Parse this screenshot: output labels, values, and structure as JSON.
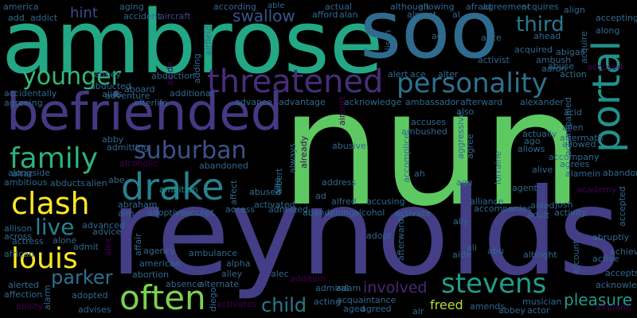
{
  "words": [
    {
      "text": "ambrose",
      "color": "#22a884"
    },
    {
      "text": "soo",
      "color": "#2f6b8e"
    },
    {
      "text": "nun",
      "color": "#5ec962"
    },
    {
      "text": "reynolds",
      "color": "#433e85"
    },
    {
      "text": "befriended",
      "color": "#443983"
    },
    {
      "text": "threatened",
      "color": "#472d7b"
    },
    {
      "text": "personality",
      "color": "#2c728e"
    },
    {
      "text": "drake",
      "color": "#27808e"
    },
    {
      "text": "portal",
      "color": "#21918c"
    },
    {
      "text": "younger",
      "color": "#35b779"
    },
    {
      "text": "family",
      "color": "#2db27d"
    },
    {
      "text": "suburban",
      "color": "#3b528b"
    },
    {
      "text": "clash",
      "color": "#fde725"
    },
    {
      "text": "third",
      "color": "#2a788e"
    },
    {
      "text": "live",
      "color": "#26828e"
    },
    {
      "text": "louis",
      "color": "#fde725"
    },
    {
      "text": "stevens",
      "color": "#1f9e89"
    },
    {
      "text": "often",
      "color": "#7ad151"
    },
    {
      "text": "parker",
      "color": "#2c728e"
    },
    {
      "text": "child",
      "color": "#2a788e"
    },
    {
      "text": "involved",
      "color": "#482878"
    },
    {
      "text": "pleasure",
      "color": "#1f9a8a"
    },
    {
      "text": "freed",
      "color": "#b5de2b"
    },
    {
      "text": "swallow",
      "color": "#39568c"
    },
    {
      "text": "hint",
      "color": "#3e4989"
    },
    {
      "text": "abide",
      "color": "#440154"
    },
    {
      "text": "ambition",
      "color": "#21918c"
    },
    {
      "text": "america",
      "color": "#31688e"
    },
    {
      "text": "addict",
      "color": "#31688e"
    },
    {
      "text": "aging",
      "color": "#31688e"
    },
    {
      "text": "accident",
      "color": "#31688e"
    },
    {
      "text": "aircraft",
      "color": "#3e4989"
    },
    {
      "text": "add",
      "color": "#2c728e"
    },
    {
      "text": "able",
      "color": "#31688e"
    },
    {
      "text": "actual",
      "color": "#31688e"
    },
    {
      "text": "although",
      "color": "#31688e"
    },
    {
      "text": "allowing",
      "color": "#31688e"
    },
    {
      "text": "agreement",
      "color": "#31688e"
    },
    {
      "text": "acquires",
      "color": "#31688e"
    },
    {
      "text": "align",
      "color": "#31688e"
    },
    {
      "text": "accepting",
      "color": "#31688e"
    },
    {
      "text": "afford",
      "color": "#31688e"
    },
    {
      "text": "alan",
      "color": "#31688e"
    },
    {
      "text": "almost",
      "color": "#31688e"
    },
    {
      "text": "al",
      "color": "#31688e"
    },
    {
      "text": "afraid",
      "color": "#31688e"
    },
    {
      "text": "according",
      "color": "#31688e"
    },
    {
      "text": "along",
      "color": "#31688e"
    },
    {
      "text": "abigail",
      "color": "#31688e"
    },
    {
      "text": "acquire",
      "color": "#31688e"
    },
    {
      "text": "alice",
      "color": "#31688e"
    },
    {
      "text": "act",
      "color": "#31688e"
    },
    {
      "text": "alison",
      "color": "#31688e"
    },
    {
      "text": "ahead",
      "color": "#31688e"
    },
    {
      "text": "acquired",
      "color": "#31688e"
    },
    {
      "text": "ambush",
      "color": "#31688e"
    },
    {
      "text": "abuse",
      "color": "#31688e"
    },
    {
      "text": "aaron",
      "color": "#31688e"
    },
    {
      "text": "action",
      "color": "#31688e"
    },
    {
      "text": "accused",
      "color": "#440154"
    },
    {
      "text": "activist",
      "color": "#31688e"
    },
    {
      "text": "alert",
      "color": "#31688e"
    },
    {
      "text": "ace",
      "color": "#31688e"
    },
    {
      "text": "alter",
      "color": "#31688e"
    },
    {
      "text": "airfield",
      "color": "#31688e"
    },
    {
      "text": "adding",
      "color": "#31688e"
    },
    {
      "text": "abbey",
      "color": "#31688e"
    },
    {
      "text": "abducted",
      "color": "#31688e"
    },
    {
      "text": "aboard",
      "color": "#31688e"
    },
    {
      "text": "abduction",
      "color": "#31688e"
    },
    {
      "text": "accidentally",
      "color": "#31688e"
    },
    {
      "text": "alias",
      "color": "#31688e"
    },
    {
      "text": "adventure",
      "color": "#31688e"
    },
    {
      "text": "additional",
      "color": "#31688e"
    },
    {
      "text": "agreeing",
      "color": "#31688e"
    },
    {
      "text": "afterlife",
      "color": "#31688e"
    },
    {
      "text": "advance",
      "color": "#31688e"
    },
    {
      "text": "advantage",
      "color": "#31688e"
    },
    {
      "text": "acknowledge",
      "color": "#31688e"
    },
    {
      "text": "ambassador",
      "color": "#31688e"
    },
    {
      "text": "afterward",
      "color": "#31688e"
    },
    {
      "text": "alexander",
      "color": "#31688e"
    },
    {
      "text": "acid",
      "color": "#31688e"
    },
    {
      "text": "accompanied",
      "color": "#31688e"
    },
    {
      "text": "allen",
      "color": "#31688e"
    },
    {
      "text": "aftermath",
      "color": "#31688e"
    },
    {
      "text": "allowed",
      "color": "#31688e"
    },
    {
      "text": "accompany",
      "color": "#31688e"
    },
    {
      "text": "agrees",
      "color": "#31688e"
    },
    {
      "text": "alamein",
      "color": "#31688e"
    },
    {
      "text": "abandon",
      "color": "#31688e"
    },
    {
      "text": "academy",
      "color": "#440154"
    },
    {
      "text": "accuses",
      "color": "#31688e"
    },
    {
      "text": "ambushed",
      "color": "#31688e"
    },
    {
      "text": "also",
      "color": "#31688e"
    },
    {
      "text": "actually",
      "color": "#31688e"
    },
    {
      "text": "ago",
      "color": "#31688e"
    },
    {
      "text": "allows",
      "color": "#31688e"
    },
    {
      "text": "admitting",
      "color": "#31688e"
    },
    {
      "text": "alcoholic",
      "color": "#440154"
    },
    {
      "text": "abby",
      "color": "#31688e"
    },
    {
      "text": "altar",
      "color": "#31688e"
    },
    {
      "text": "alongside",
      "color": "#31688e"
    },
    {
      "text": "ambitious",
      "color": "#31688e"
    },
    {
      "text": "abducts",
      "color": "#31688e"
    },
    {
      "text": "alien",
      "color": "#31688e"
    },
    {
      "text": "abe",
      "color": "#31688e"
    },
    {
      "text": "abandoned",
      "color": "#31688e"
    },
    {
      "text": "abused",
      "color": "#31688e"
    },
    {
      "text": "albert",
      "color": "#31688e"
    },
    {
      "text": "always",
      "color": "#31688e"
    },
    {
      "text": "already",
      "color": "#440154"
    },
    {
      "text": "abusive",
      "color": "#31688e"
    },
    {
      "text": "accomplice",
      "color": "#31688e"
    },
    {
      "text": "ah",
      "color": "#31688e"
    },
    {
      "text": "aggressive",
      "color": "#31688e"
    },
    {
      "text": "agree",
      "color": "#31688e"
    },
    {
      "text": "lorraine",
      "color": "#31688e"
    },
    {
      "text": "alive",
      "color": "#31688e"
    },
    {
      "text": "airport",
      "color": "#440154"
    },
    {
      "text": "allie",
      "color": "#31688e"
    },
    {
      "text": "affect",
      "color": "#31688e"
    },
    {
      "text": "abraham",
      "color": "#31688e"
    },
    {
      "text": "aim",
      "color": "#31688e"
    },
    {
      "text": "adoptive",
      "color": "#31688e"
    },
    {
      "text": "accept",
      "color": "#31688e"
    },
    {
      "text": "access",
      "color": "#31688e"
    },
    {
      "text": "activated",
      "color": "#31688e"
    },
    {
      "text": "admitted",
      "color": "#31688e"
    },
    {
      "text": "address",
      "color": "#31688e"
    },
    {
      "text": "ad",
      "color": "#31688e"
    },
    {
      "text": "alfred",
      "color": "#31688e"
    },
    {
      "text": "accusing",
      "color": "#31688e"
    },
    {
      "text": "abandoning",
      "color": "#31688e"
    },
    {
      "text": "alcohol",
      "color": "#31688e"
    },
    {
      "text": "age",
      "color": "#31688e"
    },
    {
      "text": "alliance",
      "color": "#31688e"
    },
    {
      "text": "accompanies",
      "color": "#31688e"
    },
    {
      "text": "agent",
      "color": "#31688e"
    },
    {
      "text": "activate",
      "color": "#31688e"
    },
    {
      "text": "ally",
      "color": "#31688e"
    },
    {
      "text": "aided",
      "color": "#31688e"
    },
    {
      "text": "josh",
      "color": "#31688e"
    },
    {
      "text": "adult",
      "color": "#31688e"
    },
    {
      "text": "activity",
      "color": "#31688e"
    },
    {
      "text": "accepted",
      "color": "#31688e"
    },
    {
      "text": "allison",
      "color": "#31688e"
    },
    {
      "text": "advanced",
      "color": "#31688e"
    },
    {
      "text": "across",
      "color": "#31688e"
    },
    {
      "text": "advice",
      "color": "#31688e"
    },
    {
      "text": "actress",
      "color": "#31688e"
    },
    {
      "text": "alone",
      "color": "#31688e"
    },
    {
      "text": "admit",
      "color": "#31688e"
    },
    {
      "text": "adopt",
      "color": "#31688e"
    },
    {
      "text": "ali",
      "color": "#31688e"
    },
    {
      "text": "aide",
      "color": "#31688e"
    },
    {
      "text": "abu",
      "color": "#31688e"
    },
    {
      "text": "albright",
      "color": "#31688e"
    },
    {
      "text": "abruptly",
      "color": "#31688e"
    },
    {
      "text": "achieve",
      "color": "#31688e"
    },
    {
      "text": "active",
      "color": "#31688e"
    },
    {
      "text": "account",
      "color": "#31688e"
    },
    {
      "text": "african",
      "color": "#31688e"
    },
    {
      "text": "alex",
      "color": "#440154"
    },
    {
      "text": "affair",
      "color": "#31688e"
    },
    {
      "text": "agency",
      "color": "#31688e"
    },
    {
      "text": "american",
      "color": "#31688e"
    },
    {
      "text": "ambulance",
      "color": "#31688e"
    },
    {
      "text": "abortion",
      "color": "#31688e"
    },
    {
      "text": "alpha",
      "color": "#31688e"
    },
    {
      "text": "alley",
      "color": "#31688e"
    },
    {
      "text": "alec",
      "color": "#31688e"
    },
    {
      "text": "addition",
      "color": "#440154"
    },
    {
      "text": "afterwards",
      "color": "#31688e"
    },
    {
      "text": "accepts",
      "color": "#31688e"
    },
    {
      "text": "alerted",
      "color": "#31688e"
    },
    {
      "text": "affection",
      "color": "#31688e"
    },
    {
      "text": "ability",
      "color": "#440154"
    },
    {
      "text": "alarm",
      "color": "#31688e"
    },
    {
      "text": "adopted",
      "color": "#31688e"
    },
    {
      "text": "advises",
      "color": "#31688e"
    },
    {
      "text": "absence",
      "color": "#31688e"
    },
    {
      "text": "alternate",
      "color": "#31688e"
    },
    {
      "text": "diego",
      "color": "#31688e"
    },
    {
      "text": "activates",
      "color": "#440154"
    },
    {
      "text": "admiral",
      "color": "#31688e"
    },
    {
      "text": "adam",
      "color": "#31688e"
    },
    {
      "text": "acting",
      "color": "#31688e"
    },
    {
      "text": "acquaintance",
      "color": "#31688e"
    },
    {
      "text": "aged",
      "color": "#31688e"
    },
    {
      "text": "agreed",
      "color": "#31688e"
    },
    {
      "text": "air",
      "color": "#31688e"
    },
    {
      "text": "amends",
      "color": "#31688e"
    },
    {
      "text": "abbey",
      "color": "#31688e"
    },
    {
      "text": "musician",
      "color": "#31688e"
    },
    {
      "text": "actor",
      "color": "#31688e"
    },
    {
      "text": "acknowledges",
      "color": "#31688e"
    },
    {
      "text": "airplane",
      "color": "#440154"
    }
  ]
}
